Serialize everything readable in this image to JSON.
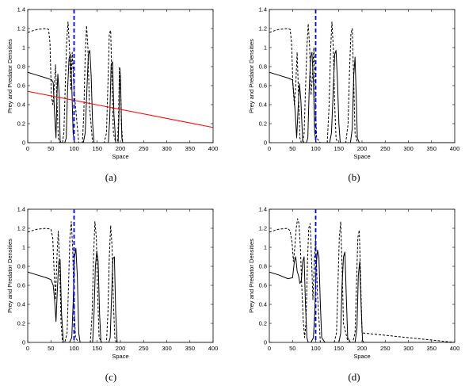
{
  "chart_data": [
    {
      "type": "line",
      "panel_label": "(a)",
      "xlabel": "Space",
      "ylabel": "Prey and Predator Densities",
      "xlim": [
        0,
        400
      ],
      "ylim": [
        0,
        1.4
      ],
      "x_ticks": [
        "0",
        "50",
        "100",
        "150",
        "200",
        "250",
        "300",
        "350",
        "400"
      ],
      "y_ticks": [
        "0",
        "0.2",
        "0.4",
        "0.6",
        "0.8",
        "1",
        "1.2",
        "1.4"
      ],
      "vline_x": 100,
      "series": [
        {
          "style": "solid",
          "color": "#000000",
          "x": [
            0,
            20,
            40,
            52,
            55,
            58,
            61,
            63,
            65,
            68,
            70,
            72,
            75,
            80,
            83,
            86,
            89,
            92,
            95,
            98,
            101,
            104,
            110,
            120,
            124,
            128,
            131,
            134,
            137,
            140,
            143,
            150,
            160,
            174,
            177,
            180,
            183,
            186,
            190,
            195,
            197,
            199,
            201,
            203,
            205,
            210,
            400
          ],
          "y": [
            0.74,
            0.71,
            0.68,
            0.66,
            0.63,
            0.3,
            0.05,
            0.5,
            0.72,
            0.5,
            0.02,
            0,
            0,
            0,
            0.05,
            0.55,
            0.88,
            0.93,
            0.6,
            0.1,
            0,
            0,
            0,
            0,
            0.1,
            0.6,
            0.93,
            0.97,
            0.7,
            0.2,
            0,
            0,
            0,
            0,
            0.25,
            0.82,
            0.85,
            0.3,
            0,
            0,
            0.3,
            0.78,
            0.5,
            0.05,
            0,
            0,
            0
          ]
        },
        {
          "style": "dashed",
          "color": "#000000",
          "x": [
            0,
            20,
            40,
            45,
            48,
            51,
            54,
            57,
            60,
            63,
            66,
            69,
            75,
            78,
            81,
            84,
            87,
            90,
            93,
            96,
            100,
            110,
            118,
            121,
            124,
            127,
            130,
            133,
            140,
            165,
            170,
            173,
            176,
            179,
            182,
            185,
            190,
            194,
            196,
            198,
            200,
            202,
            205,
            210,
            400
          ],
          "y": [
            1.16,
            1.19,
            1.2,
            1.19,
            1.05,
            0.5,
            0.4,
            0.55,
            0.82,
            0.45,
            0.05,
            0,
            0,
            0.1,
            0.6,
            1.05,
            1.27,
            1.0,
            0.55,
            0.95,
            0.55,
            0,
            0,
            0.3,
            0.9,
            1.23,
            1.0,
            0.4,
            0,
            0,
            0.1,
            0.6,
            1.15,
            1.18,
            0.6,
            0.1,
            0,
            0,
            0.3,
            0.8,
            0.7,
            0.2,
            0,
            0,
            0
          ]
        },
        {
          "style": "solid",
          "color": "#ff0000",
          "x": [
            0,
            400
          ],
          "y": [
            0.54,
            0.16
          ]
        }
      ]
    },
    {
      "type": "line",
      "panel_label": "(b)",
      "xlabel": "Space",
      "ylabel": "Prey and Predator Densities",
      "xlim": [
        0,
        400
      ],
      "ylim": [
        0,
        1.4
      ],
      "x_ticks": [
        "0",
        "50",
        "100",
        "150",
        "200",
        "250",
        "300",
        "350",
        "400"
      ],
      "y_ticks": [
        "0",
        "0.2",
        "0.4",
        "0.6",
        "0.8",
        "1",
        "1.2",
        "1.4"
      ],
      "vline_x": 100,
      "series": [
        {
          "style": "solid",
          "color": "#000000",
          "x": [
            0,
            20,
            40,
            50,
            53,
            56,
            59,
            62,
            65,
            68,
            72,
            75,
            78,
            80,
            83,
            86,
            89,
            92,
            95,
            98,
            101,
            104,
            110,
            130,
            134,
            138,
            141,
            144,
            147,
            150,
            153,
            160,
            175,
            179,
            182,
            185,
            188,
            190,
            194,
            197,
            400
          ],
          "y": [
            0.74,
            0.71,
            0.68,
            0.66,
            0.5,
            0.3,
            0.05,
            0.35,
            0.62,
            0.45,
            0.02,
            0,
            0,
            0,
            0.05,
            0.55,
            0.9,
            0.95,
            0.65,
            0.1,
            0,
            0,
            0,
            0,
            0.1,
            0.55,
            0.93,
            0.97,
            0.65,
            0.2,
            0,
            0,
            0,
            0.15,
            0.7,
            0.9,
            0.4,
            0.05,
            0,
            0,
            0
          ]
        },
        {
          "style": "dashed",
          "color": "#000000",
          "x": [
            0,
            20,
            40,
            45,
            48,
            51,
            54,
            57,
            60,
            63,
            66,
            69,
            72,
            75,
            78,
            81,
            84,
            87,
            90,
            93,
            96,
            99,
            102,
            110,
            125,
            129,
            132,
            135,
            138,
            141,
            144,
            147,
            150,
            165,
            170,
            173,
            176,
            179,
            182,
            185,
            190,
            400
          ],
          "y": [
            1.16,
            1.19,
            1.2,
            1.19,
            1.05,
            0.6,
            0.4,
            0.6,
            0.95,
            0.5,
            0.05,
            0,
            0,
            0.1,
            0.55,
            1.0,
            1.25,
            1.0,
            0.5,
            0.7,
            1.0,
            0.5,
            0.05,
            0,
            0,
            0.4,
            0.95,
            1.27,
            1.0,
            0.4,
            0.05,
            0,
            0,
            0,
            0.2,
            0.75,
            1.15,
            1.2,
            0.65,
            0.1,
            0,
            0
          ]
        }
      ]
    },
    {
      "type": "line",
      "panel_label": "(c)",
      "xlabel": "Space",
      "ylabel": "Prey and Predator Densities",
      "xlim": [
        0,
        400
      ],
      "ylim": [
        0,
        1.4
      ],
      "x_ticks": [
        "0",
        "50",
        "100",
        "150",
        "200",
        "250",
        "300",
        "350",
        "400"
      ],
      "y_ticks": [
        "0",
        "0.2",
        "0.4",
        "0.6",
        "0.8",
        "1",
        "1.2",
        "1.4"
      ],
      "vline_x": 100,
      "series": [
        {
          "style": "solid",
          "color": "#000000",
          "x": [
            0,
            20,
            40,
            50,
            55,
            58,
            61,
            64,
            67,
            70,
            73,
            77,
            80,
            90,
            95,
            98,
            101,
            104,
            107,
            110,
            113,
            120,
            135,
            140,
            143,
            146,
            149,
            152,
            155,
            158,
            165,
            175,
            178,
            181,
            184,
            187,
            190,
            193,
            400
          ],
          "y": [
            0.74,
            0.71,
            0.68,
            0.66,
            0.6,
            0.45,
            0.22,
            0.55,
            0.85,
            0.87,
            0.3,
            0,
            0,
            0,
            0.05,
            0.4,
            0.9,
            0.99,
            0.7,
            0.1,
            0,
            0,
            0,
            0,
            0.3,
            0.8,
            0.96,
            0.85,
            0.3,
            0,
            0,
            0,
            0.05,
            0.5,
            0.88,
            0.9,
            0.3,
            0,
            0
          ]
        },
        {
          "style": "dashed",
          "color": "#000000",
          "x": [
            0,
            20,
            40,
            50,
            54,
            57,
            60,
            63,
            66,
            69,
            72,
            75,
            80,
            85,
            88,
            91,
            94,
            97,
            100,
            103,
            110,
            135,
            139,
            142,
            145,
            148,
            151,
            154,
            160,
            170,
            173,
            176,
            179,
            182,
            185,
            188,
            191,
            400
          ],
          "y": [
            1.16,
            1.19,
            1.2,
            1.19,
            1.1,
            0.75,
            0.45,
            0.9,
            1.17,
            0.8,
            0.2,
            0,
            0,
            0.1,
            0.6,
            1.1,
            1.27,
            1.0,
            0.4,
            0.05,
            0,
            0,
            0.3,
            0.9,
            1.27,
            1.1,
            0.5,
            0.05,
            0,
            0,
            0.3,
            0.9,
            1.23,
            1.0,
            0.4,
            0.05,
            0,
            0
          ]
        }
      ]
    },
    {
      "type": "line",
      "panel_label": "(d)",
      "xlabel": "Space",
      "ylabel": "Prey and Predator Densities",
      "xlim": [
        0,
        400
      ],
      "ylim": [
        0,
        1.4
      ],
      "x_ticks": [
        "0",
        "50",
        "100",
        "150",
        "200",
        "250",
        "300",
        "350",
        "400"
      ],
      "y_ticks": [
        "0",
        "0.2",
        "0.4",
        "0.6",
        "0.8",
        "1",
        "1.2",
        "1.4"
      ],
      "vline_x": 100,
      "series": [
        {
          "style": "solid",
          "color": "#000000",
          "x": [
            0,
            20,
            40,
            50,
            54,
            57,
            60,
            63,
            66,
            69,
            72,
            75,
            78,
            81,
            84,
            87,
            90,
            95,
            98,
            101,
            104,
            107,
            110,
            113,
            120,
            150,
            154,
            157,
            160,
            163,
            166,
            169,
            175,
            185,
            189,
            192,
            195,
            198,
            201,
            204,
            400
          ],
          "y": [
            0.74,
            0.71,
            0.67,
            0.68,
            0.85,
            0.9,
            0.75,
            0.7,
            0.62,
            0.65,
            0.85,
            0.9,
            0.4,
            0.05,
            0,
            0,
            0,
            0.05,
            0.3,
            0.8,
            0.97,
            0.9,
            0.4,
            0.05,
            0,
            0,
            0.1,
            0.6,
            0.9,
            0.95,
            0.5,
            0.05,
            0,
            0,
            0.15,
            0.7,
            0.85,
            0.4,
            0.02,
            0,
            0
          ]
        },
        {
          "style": "dashed",
          "color": "#000000",
          "x": [
            0,
            20,
            40,
            45,
            49,
            52,
            55,
            58,
            61,
            64,
            67,
            70,
            73,
            76,
            79,
            82,
            85,
            88,
            91,
            94,
            97,
            100,
            104,
            110,
            140,
            145,
            148,
            151,
            154,
            157,
            160,
            170,
            180,
            185,
            188,
            191,
            194,
            197,
            200,
            400
          ],
          "y": [
            1.16,
            1.19,
            1.2,
            1.17,
            1.05,
            0.85,
            1.0,
            1.2,
            1.3,
            1.25,
            1.0,
            0.6,
            0.25,
            0.05,
            0.2,
            0.8,
            1.2,
            1.25,
            0.9,
            0.45,
            0.85,
            1.1,
            0.5,
            0,
            0,
            0.1,
            0.6,
            1.1,
            1.27,
            0.8,
            0.2,
            0,
            0,
            0.1,
            0.6,
            1.1,
            1.18,
            0.7,
            0.1,
            0
          ]
        }
      ]
    }
  ]
}
